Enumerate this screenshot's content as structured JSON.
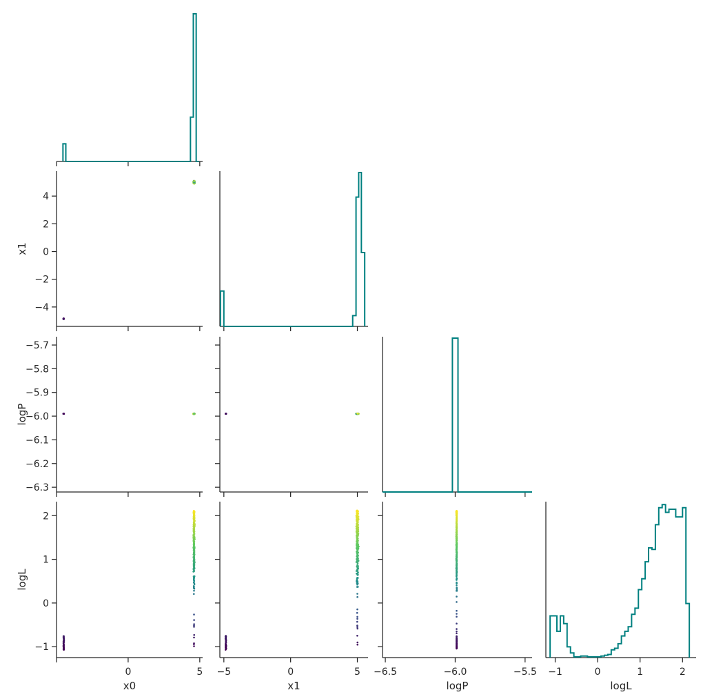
{
  "chart_data": {
    "type": "corner",
    "params": [
      "x0",
      "x1",
      "logP",
      "logL"
    ],
    "axis_titles": {
      "x": [
        "x0",
        "x1",
        "logP",
        "logL"
      ],
      "y": [
        "",
        "x1",
        "logP",
        "logL"
      ]
    },
    "ranges": {
      "x0": [
        -5.0,
        5.2
      ],
      "x1": [
        -5.3,
        5.8
      ],
      "logP": [
        -6.52,
        -5.45
      ],
      "logL": [
        -1.22,
        2.32
      ]
    },
    "y_ranges": {
      "x1": [
        -5.4,
        5.8
      ],
      "logP": [
        -6.32,
        -5.665
      ],
      "logL": [
        -1.25,
        2.32
      ]
    },
    "ticks": {
      "x0": {
        "values": [
          0,
          5
        ],
        "labels": [
          "0",
          "5"
        ],
        "x_only_marks": [
          -5
        ]
      },
      "x1": {
        "values": [
          -5,
          0,
          5
        ],
        "labels": [
          "−5",
          "0",
          "5"
        ]
      },
      "logP": {
        "values": [
          -6.5,
          -6.0,
          -5.5
        ],
        "labels": [
          "−6.5",
          "−6.0",
          "−5.5"
        ]
      },
      "logL": {
        "values": [
          -1,
          0,
          1,
          2
        ],
        "labels": [
          "−1",
          "0",
          "1",
          "2"
        ]
      },
      "x1_y": {
        "values": [
          4,
          2,
          0,
          -2,
          -4
        ],
        "labels": [
          "4",
          "2",
          "0",
          "−2",
          "−4"
        ]
      },
      "logP_y": {
        "values": [
          -5.7,
          -5.8,
          -5.9,
          -6.0,
          -6.1,
          -6.2,
          -6.3
        ],
        "labels": [
          "−5.7",
          "−5.8",
          "−5.9",
          "−6.0",
          "−6.1",
          "−6.2",
          "−6.3"
        ]
      },
      "logL_y": {
        "values": [
          2,
          1,
          0,
          -1
        ],
        "labels": [
          "2",
          "1",
          "0",
          "−1"
        ]
      }
    },
    "histograms": {
      "x0": {
        "edges": [
          -4.55,
          -4.35,
          4.35,
          4.55,
          4.75,
          4.95
        ],
        "counts": [
          0.12,
          0.0,
          0.3,
          1.0,
          0.0
        ]
      },
      "x1": {
        "edges": [
          -5.25,
          -5.0,
          4.65,
          4.9,
          5.1,
          5.3,
          5.55
        ],
        "counts": [
          0.23,
          0.0,
          0.07,
          0.84,
          1.0,
          0.48
        ]
      },
      "logP": {
        "edges": [
          -6.52,
          -6.02,
          -5.98,
          -5.45
        ],
        "counts": [
          0.0,
          1.0,
          0.0
        ]
      },
      "logL": {
        "edges": [
          -1.12,
          -1.04,
          -0.96,
          -0.88,
          -0.8,
          -0.72,
          -0.64,
          -0.56,
          -0.48,
          -0.4,
          -0.32,
          -0.24,
          -0.16,
          -0.08,
          0.0,
          0.08,
          0.16,
          0.24,
          0.32,
          0.4,
          0.48,
          0.56,
          0.64,
          0.72,
          0.8,
          0.88,
          0.96,
          1.04,
          1.12,
          1.2,
          1.28,
          1.36,
          1.44,
          1.52,
          1.6,
          1.68,
          1.76,
          1.84,
          1.92,
          2.0,
          2.08,
          2.16
        ],
        "counts": [
          0.27,
          0.27,
          0.17,
          0.27,
          0.22,
          0.07,
          0.03,
          0.005,
          0.005,
          0.01,
          0.01,
          0.005,
          0.005,
          0.005,
          0.005,
          0.01,
          0.015,
          0.02,
          0.05,
          0.06,
          0.09,
          0.14,
          0.17,
          0.2,
          0.28,
          0.32,
          0.44,
          0.51,
          0.62,
          0.71,
          0.7,
          0.86,
          0.97,
          0.99,
          0.94,
          0.96,
          0.96,
          0.91,
          0.91,
          0.97,
          0.35
        ]
      }
    },
    "scatter_clusters": [
      {
        "panel": "x0-x1",
        "x": -4.5,
        "y": -4.85,
        "logL": -1.0
      },
      {
        "panel": "x0-x1",
        "x": 4.6,
        "y": 5.0,
        "logL": 1.5
      },
      {
        "panel": "x0-logP",
        "x": -4.5,
        "y": -5.99,
        "logL": -1.0
      },
      {
        "panel": "x0-logP",
        "x": 4.6,
        "y": -5.99,
        "logL": 1.5
      },
      {
        "panel": "x1-logP",
        "x": -4.85,
        "y": -5.99,
        "logL": -1.0
      },
      {
        "panel": "x1-logP",
        "x": 5.0,
        "y": -5.99,
        "logL": 1.5
      },
      {
        "panel": "x0-logL",
        "x_low": -4.5,
        "x_high": 4.6,
        "logL_range": [
          -1.07,
          2.12
        ]
      },
      {
        "panel": "x1-logL",
        "x_low": -4.85,
        "x_high": 5.0,
        "logL_range": [
          -1.07,
          2.12
        ]
      },
      {
        "panel": "logP-logL",
        "x": -5.99,
        "logL_range": [
          -1.07,
          2.12
        ]
      }
    ],
    "colors": {
      "hist": "#008080",
      "colormap": [
        "#440154",
        "#3b528b",
        "#21918c",
        "#5ec962",
        "#fde725"
      ]
    }
  }
}
